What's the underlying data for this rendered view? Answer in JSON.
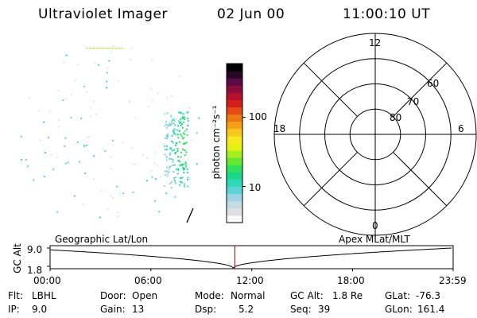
{
  "header": {
    "instrument": "Ultraviolet Imager",
    "date": "02 Jun 00",
    "time": "11:00:10 UT"
  },
  "colorbar": {
    "unit_label": "photon cm⁻²s⁻¹",
    "tick_labels": [
      "100",
      "10"
    ],
    "tick_values": [
      100,
      10
    ],
    "range": [
      3,
      600
    ],
    "log_scale": true,
    "colors": [
      "#fbfbfb",
      "#e0e0e0",
      "#c4dce4",
      "#9fd4e6",
      "#5fd4d6",
      "#2fd9b8",
      "#19d98a",
      "#2fe05a",
      "#66e832",
      "#a6ef1e",
      "#e6f015",
      "#f6e81e",
      "#f8c81c",
      "#f6a018",
      "#f07814",
      "#e44a14",
      "#d41e1e",
      "#b4102c",
      "#8c0c3a",
      "#5a0a46",
      "#2a0626",
      "#000000"
    ]
  },
  "polar": {
    "mlt_labels": [
      {
        "text": "12",
        "mlt": 12
      },
      {
        "text": "18",
        "mlt": 18
      },
      {
        "text": "6",
        "mlt": 6
      },
      {
        "text": "0",
        "mlt": 0
      }
    ],
    "lat_labels": [
      "60",
      "70",
      "80"
    ]
  },
  "altitude_plot": {
    "ylabel": "GC Alt",
    "y_ticks": [
      "9.0",
      "1.8"
    ],
    "left_title": "Geographic Lat/Lon",
    "right_title": "Apex MLat/MLT",
    "x_ticks": [
      "00:00",
      "06:00",
      "12:00",
      "18:00",
      "23:59"
    ],
    "marker_time": "11:00"
  },
  "info": {
    "flt_label": "Flt:",
    "flt_value": "LBHL",
    "ip_label": "IP:",
    "ip_value": "9.0",
    "door_label": "Door:",
    "door_value": "Open",
    "gain_label": "Gain:",
    "gain_value": "13",
    "mode_label": "Mode:",
    "mode_value": "Normal",
    "dsp_label": "Dsp:",
    "dsp_value": "5.2",
    "gcalt_label": "GC Alt:",
    "gcalt_value": "1.8 Re",
    "seq_label": "Seq:",
    "seq_value": "39",
    "glat_label": "GLat:",
    "glat_value": "-76.3",
    "glon_label": "GLon:",
    "glon_value": "161.4"
  },
  "colors": {
    "marker": "#cc0000",
    "ink": "#000000"
  }
}
